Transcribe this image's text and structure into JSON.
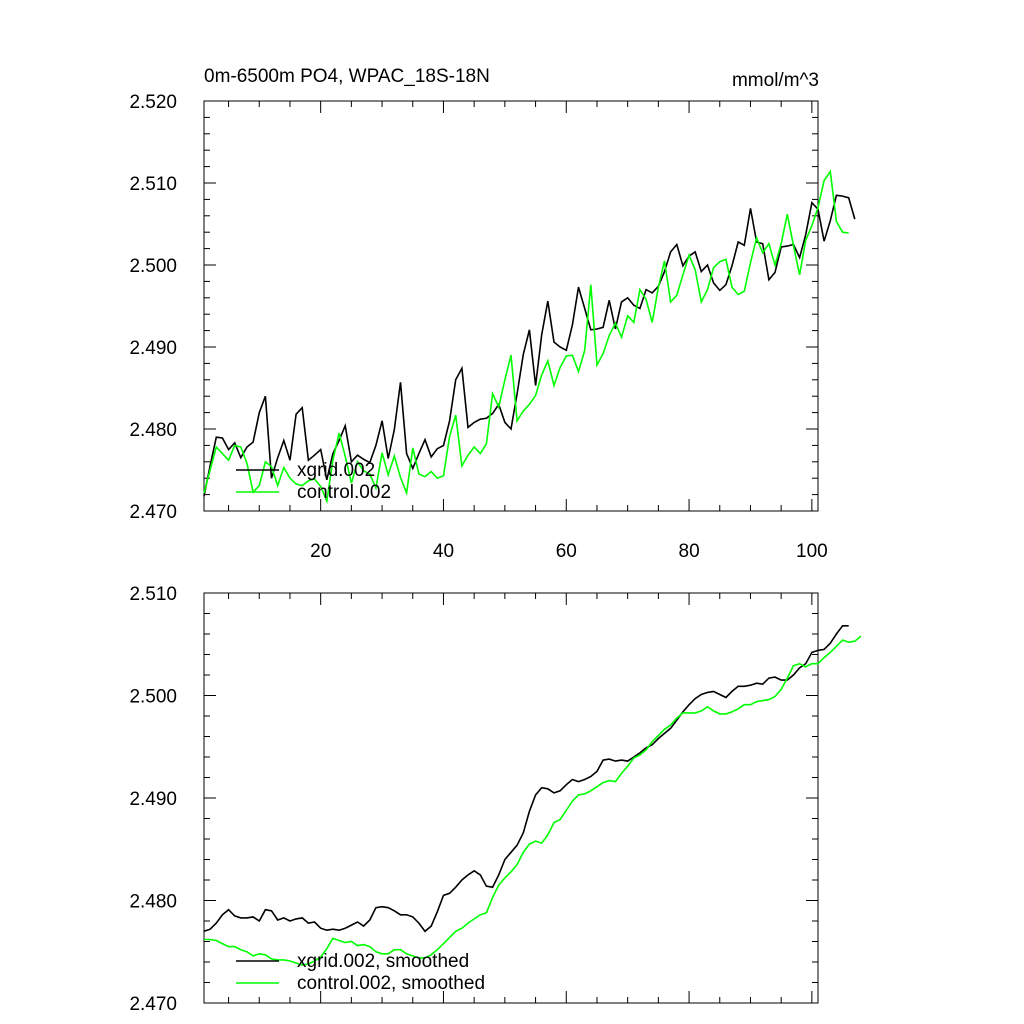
{
  "chart_data": [
    {
      "type": "line",
      "title": "0m-6500m PO4, WPAC_18S-18N",
      "units": "mmol/m^3",
      "xlim": [
        1,
        101
      ],
      "ylim": [
        2.47,
        2.52
      ],
      "xticks": [
        "20",
        "40",
        "60",
        "80",
        "100"
      ],
      "yticks": [
        "2.470",
        "2.480",
        "2.490",
        "2.500",
        "2.510",
        "2.520"
      ],
      "series": [
        {
          "name": "xgrid.002",
          "color": "#000000",
          "values": [
            2.4718,
            2.4755,
            2.479,
            2.4789,
            2.4775,
            2.4783,
            2.4765,
            2.4778,
            2.4784,
            2.482,
            2.484,
            2.474,
            2.4765,
            2.4786,
            2.4762,
            2.4818,
            2.4826,
            2.4762,
            2.4768,
            2.4775,
            2.4738,
            2.477,
            2.4786,
            2.4804,
            2.476,
            2.4768,
            2.4763,
            2.4759,
            2.478,
            2.481,
            2.4764,
            2.4799,
            2.4857,
            2.477,
            2.4752,
            2.477,
            2.4787,
            2.4766,
            2.4776,
            2.478,
            2.481,
            2.486,
            2.4874,
            2.4802,
            2.4808,
            2.4812,
            2.4813,
            2.4819,
            2.483,
            2.4808,
            2.48,
            2.4843,
            2.4891,
            2.4921,
            2.4853,
            2.4915,
            2.4956,
            2.4906,
            2.49,
            2.4896,
            2.4927,
            2.4973,
            2.4947,
            2.4921,
            2.4922,
            2.4924,
            2.4957,
            2.4922,
            2.4955,
            2.496,
            2.4951,
            2.4947,
            2.497,
            2.4966,
            2.4974,
            2.4992,
            2.5016,
            2.5025,
            2.4999,
            2.5011,
            2.5016,
            2.4992,
            2.5,
            2.4978,
            2.4969,
            2.4976,
            2.4999,
            2.5028,
            2.5024,
            2.5069,
            2.5028,
            2.5026,
            2.4982,
            2.4991,
            2.5022,
            2.5023,
            2.5025,
            2.5009,
            2.5037,
            2.5076,
            2.5068,
            2.5029,
            2.5054,
            2.5085,
            2.5084,
            2.5082,
            2.5056
          ]
        },
        {
          "name": "control.002",
          "color": "#00ff00",
          "values": [
            2.4722,
            2.475,
            2.4778,
            2.477,
            2.4762,
            2.478,
            2.4778,
            2.4758,
            2.4723,
            2.4731,
            2.476,
            2.4754,
            2.4731,
            2.4753,
            2.474,
            2.4733,
            2.4731,
            2.4737,
            2.4739,
            2.473,
            2.4712,
            2.4762,
            2.4795,
            2.4767,
            2.4734,
            2.476,
            2.4749,
            2.4745,
            2.4728,
            2.4771,
            2.4744,
            2.4767,
            2.4741,
            2.4722,
            2.4777,
            2.4745,
            2.4742,
            2.4748,
            2.474,
            2.4743,
            2.4791,
            2.4817,
            2.4755,
            2.4768,
            2.4778,
            2.477,
            2.4782,
            2.4843,
            2.4827,
            2.486,
            2.489,
            2.481,
            2.4822,
            2.483,
            2.4841,
            2.4866,
            2.4883,
            2.4853,
            2.4875,
            2.4889,
            2.489,
            2.487,
            2.4896,
            2.4976,
            2.4878,
            2.4892,
            2.4914,
            2.4929,
            2.4912,
            2.4938,
            2.493,
            2.497,
            2.4958,
            2.493,
            2.4973,
            2.5005,
            2.4955,
            2.4963,
            2.4988,
            2.5012,
            2.4994,
            2.4955,
            2.497,
            2.4997,
            2.5004,
            2.5007,
            2.4973,
            2.4964,
            2.4968,
            2.5003,
            2.5033,
            2.5015,
            2.5026,
            2.5,
            2.5026,
            2.5062,
            2.5024,
            2.4988,
            2.503,
            2.5048,
            2.507,
            2.5103,
            2.5114,
            2.5053,
            2.504,
            2.5039
          ]
        }
      ]
    },
    {
      "type": "line",
      "xlim": [
        1,
        101
      ],
      "ylim": [
        2.47,
        2.51
      ],
      "yticks": [
        "2.470",
        "2.480",
        "2.490",
        "2.500",
        "2.510"
      ],
      "series": [
        {
          "name": "xgrid.002, smoothed",
          "color": "#000000",
          "values": [
            2.477,
            2.4772,
            2.4778,
            2.4786,
            2.4791,
            2.4785,
            2.4783,
            2.4783,
            2.4784,
            2.478,
            2.4791,
            2.479,
            2.4781,
            2.4783,
            2.478,
            2.4782,
            2.4783,
            2.4778,
            2.4779,
            2.4773,
            2.4771,
            2.4772,
            2.4771,
            2.4773,
            2.4776,
            2.4779,
            2.4775,
            2.4781,
            2.4793,
            2.4794,
            2.4793,
            2.479,
            2.4786,
            2.4786,
            2.4784,
            2.4778,
            2.477,
            2.4775,
            2.4789,
            2.4805,
            2.4807,
            2.4813,
            2.482,
            2.4825,
            2.4829,
            2.4825,
            2.4814,
            2.4813,
            2.4825,
            2.484,
            2.4847,
            2.4854,
            2.4866,
            2.4887,
            2.4903,
            2.491,
            2.4909,
            2.4905,
            2.4907,
            2.4913,
            2.4918,
            2.4916,
            2.4918,
            2.4921,
            2.4926,
            2.4937,
            2.4938,
            2.4936,
            2.4937,
            2.4936,
            2.494,
            2.4944,
            2.4949,
            2.4952,
            2.4958,
            2.4963,
            2.4968,
            2.4976,
            2.4984,
            2.4991,
            2.4997,
            2.5001,
            2.5003,
            2.5004,
            2.5001,
            2.4998,
            2.5004,
            2.5009,
            2.5009,
            2.501,
            2.5012,
            2.5011,
            2.5017,
            2.5018,
            2.5015,
            2.5015,
            2.502,
            2.5027,
            2.5031,
            2.5042,
            2.5044,
            2.5045,
            2.5051,
            2.506,
            2.5068,
            2.5068
          ]
        },
        {
          "name": "control.002, smoothed",
          "color": "#00ff00",
          "values": [
            2.4762,
            2.4762,
            2.4761,
            2.4758,
            2.4755,
            2.4755,
            2.4752,
            2.475,
            2.4746,
            2.4748,
            2.4747,
            2.4743,
            2.4742,
            2.4742,
            2.4741,
            2.4739,
            2.4737,
            2.4738,
            2.4741,
            2.4745,
            2.4753,
            2.4763,
            2.4761,
            2.4759,
            2.476,
            2.4756,
            2.4757,
            2.4755,
            2.475,
            2.4748,
            2.4748,
            2.4752,
            2.4752,
            2.4748,
            2.4746,
            2.4744,
            2.4744,
            2.4747,
            2.4752,
            2.4758,
            2.4764,
            2.477,
            2.4773,
            2.4778,
            2.4782,
            2.4786,
            2.4788,
            2.4803,
            2.4815,
            2.4822,
            2.4828,
            2.4835,
            2.4847,
            2.4855,
            2.4858,
            2.4856,
            2.4864,
            2.4876,
            2.4879,
            2.4888,
            2.4897,
            2.4903,
            2.4904,
            2.4907,
            2.4911,
            2.4915,
            2.4917,
            2.4916,
            2.4924,
            2.4931,
            2.4939,
            2.4942,
            2.4947,
            2.4955,
            2.4961,
            2.4967,
            2.4971,
            2.4978,
            2.4983,
            2.4983,
            2.4983,
            2.4985,
            2.4989,
            2.4985,
            2.4982,
            2.4982,
            2.4984,
            2.4987,
            2.4991,
            2.4991,
            2.4994,
            2.4995,
            2.4996,
            2.4999,
            2.5006,
            2.5017,
            2.5029,
            2.5031,
            2.5028,
            2.5031,
            2.5031,
            2.5037,
            2.5042,
            2.5048,
            2.5054,
            2.5052,
            2.5053,
            2.5058
          ]
        }
      ]
    }
  ]
}
